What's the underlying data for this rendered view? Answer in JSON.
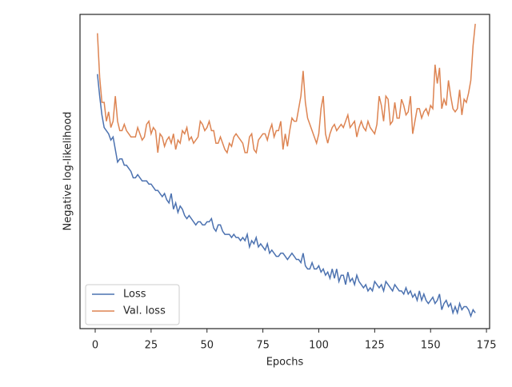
{
  "chart_data": {
    "type": "line",
    "xlabel": "Epochs",
    "ylabel": "Negative log-likelihood",
    "x": [
      1,
      2,
      3,
      4,
      5,
      6,
      7,
      8,
      9,
      10,
      11,
      12,
      13,
      14,
      15,
      16,
      17,
      18,
      19,
      20,
      21,
      22,
      23,
      24,
      25,
      26,
      27,
      28,
      29,
      30,
      31,
      32,
      33,
      34,
      35,
      36,
      37,
      38,
      39,
      40,
      41,
      42,
      43,
      44,
      45,
      46,
      47,
      48,
      49,
      50,
      51,
      52,
      53,
      54,
      55,
      56,
      57,
      58,
      59,
      60,
      61,
      62,
      63,
      64,
      65,
      66,
      67,
      68,
      69,
      70,
      71,
      72,
      73,
      74,
      75,
      76,
      77,
      78,
      79,
      80,
      81,
      82,
      83,
      84,
      85,
      86,
      87,
      88,
      89,
      90,
      91,
      92,
      93,
      94,
      95,
      96,
      97,
      98,
      99,
      100,
      101,
      102,
      103,
      104,
      105,
      106,
      107,
      108,
      109,
      110,
      111,
      112,
      113,
      114,
      115,
      116,
      117,
      118,
      119,
      120,
      121,
      122,
      123,
      124,
      125,
      126,
      127,
      128,
      129,
      130,
      131,
      132,
      133,
      134,
      135,
      136,
      137,
      138,
      139,
      140,
      141,
      142,
      143,
      144,
      145,
      146,
      147,
      148,
      149,
      150,
      151,
      152,
      153,
      154,
      155,
      156,
      157,
      158,
      159,
      160,
      161,
      162,
      163,
      164,
      165,
      166,
      167,
      168,
      169,
      170
    ],
    "series": [
      {
        "name": "Loss",
        "color": "#4c72b0",
        "values": [
          81,
          74,
          68,
          64,
          63,
          62,
          60,
          61,
          57,
          53,
          54,
          54,
          52,
          52,
          51,
          50,
          48,
          48,
          49,
          48,
          47,
          47,
          47,
          46,
          46,
          45,
          44,
          44,
          43,
          42,
          43,
          41,
          40,
          43,
          38,
          40,
          37,
          39,
          38,
          36,
          35,
          36,
          35,
          34,
          33,
          34,
          34,
          33,
          33,
          34,
          34,
          35,
          32,
          31,
          33,
          33,
          31,
          30,
          30,
          30,
          29,
          30,
          29,
          29,
          28,
          29,
          28,
          30,
          26,
          28,
          27,
          29,
          26,
          27,
          26,
          25,
          27,
          24,
          25,
          24,
          23,
          23,
          24,
          24,
          23,
          22,
          23,
          24,
          23,
          22,
          22,
          21,
          24,
          20,
          19,
          19,
          21,
          19,
          19,
          20,
          18,
          19,
          17,
          18,
          16,
          19,
          16,
          19,
          15,
          17,
          17,
          14,
          18,
          15,
          16,
          14,
          17,
          15,
          14,
          13,
          14,
          12,
          13,
          12,
          15,
          14,
          13,
          14,
          12,
          15,
          14,
          13,
          12,
          14,
          13,
          12,
          12,
          11,
          13,
          11,
          12,
          10,
          11,
          9,
          12,
          9,
          11,
          9,
          8,
          9,
          10,
          8,
          9,
          11,
          6,
          8,
          9,
          7,
          8,
          5,
          7,
          5,
          8,
          6,
          7,
          7,
          6,
          4,
          6,
          5
        ]
      },
      {
        "name": "Val. loss",
        "color": "#dd8452",
        "values": [
          94,
          80,
          72,
          72,
          66,
          69,
          64,
          66,
          74,
          66,
          63,
          63,
          65,
          63,
          62,
          61,
          61,
          61,
          64,
          62,
          60,
          61,
          65,
          66,
          62,
          64,
          63,
          56,
          62,
          61,
          58,
          60,
          61,
          59,
          62,
          57,
          60,
          59,
          63,
          62,
          64,
          60,
          61,
          59,
          60,
          61,
          66,
          65,
          63,
          64,
          66,
          63,
          63,
          59,
          59,
          61,
          59,
          57,
          56,
          59,
          58,
          61,
          62,
          61,
          60,
          59,
          56,
          56,
          61,
          62,
          57,
          56,
          60,
          61,
          62,
          62,
          60,
          63,
          65,
          61,
          63,
          63,
          66,
          57,
          62,
          58,
          63,
          67,
          66,
          66,
          70,
          74,
          82,
          72,
          67,
          65,
          63,
          61,
          59,
          62,
          70,
          74,
          62,
          59,
          62,
          64,
          65,
          63,
          64,
          65,
          64,
          66,
          68,
          64,
          65,
          66,
          61,
          64,
          66,
          64,
          63,
          66,
          64,
          63,
          62,
          65,
          74,
          71,
          66,
          74,
          73,
          65,
          66,
          72,
          67,
          67,
          73,
          71,
          68,
          69,
          74,
          62,
          66,
          70,
          70,
          67,
          69,
          70,
          68,
          71,
          70,
          84,
          78,
          83,
          70,
          73,
          71,
          79,
          74,
          70,
          69,
          70,
          76,
          68,
          73,
          72,
          75,
          79,
          90,
          97
        ]
      }
    ],
    "xlim": [
      -6.8,
      176.4
    ],
    "xticks": [
      0,
      25,
      50,
      75,
      100,
      125,
      150,
      175
    ],
    "ylim": [
      0,
      100
    ],
    "legend": "lower left",
    "grid": false
  }
}
